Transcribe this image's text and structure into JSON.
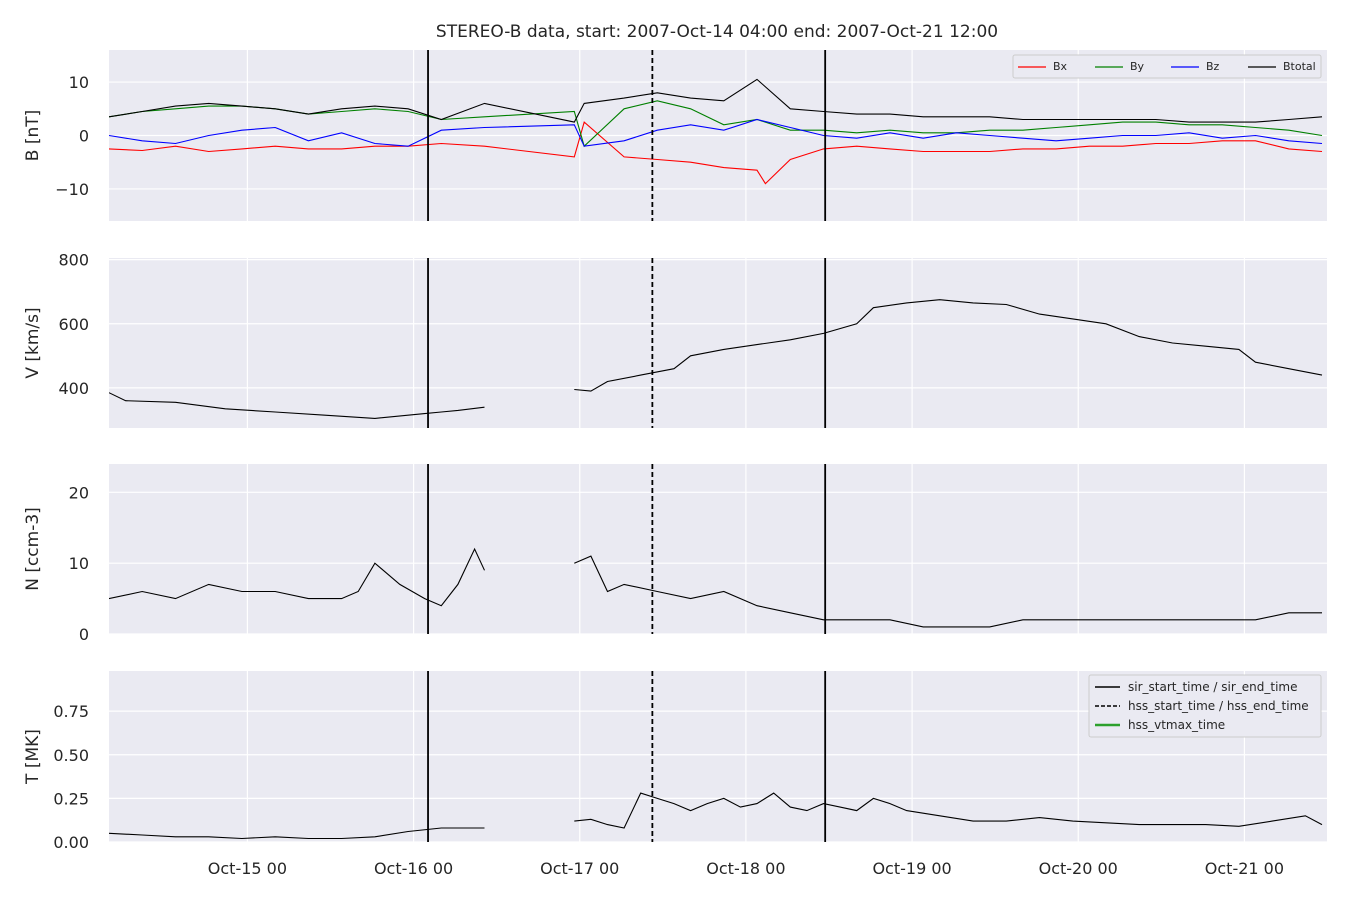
{
  "title": "STEREO-B data, start: 2007-Oct-14 04:00  end: 2007-Oct-21 12:00",
  "x_ticks": [
    "Oct-15 00",
    "Oct-16 00",
    "Oct-17 00",
    "Oct-18 00",
    "Oct-19 00",
    "Oct-20 00",
    "Oct-21 00"
  ],
  "legend_top": [
    "Bx",
    "By",
    "Bz",
    "Btotal"
  ],
  "legend_bottom": [
    "sir_start_time / sir_end_time",
    "hss_start_time / hss_end_time",
    "hss_vtmax_time"
  ],
  "colors": {
    "Bx": "#ff0000",
    "By": "#008000",
    "Bz": "#0000ff",
    "Btotal": "#000000",
    "hss_vtmax": "#2ca02c",
    "panel_bg": "#eaeaf2"
  },
  "chart_data": [
    {
      "type": "line",
      "ylabel": "B [nT]",
      "ylim": [
        -16,
        16
      ],
      "yticks": [
        -10,
        0,
        10
      ],
      "ytick_labels": [
        "−10",
        "0",
        "10"
      ],
      "series": [
        {
          "name": "Bx",
          "x": [
            0,
            0.2,
            0.4,
            0.6,
            0.8,
            1.0,
            1.2,
            1.4,
            1.6,
            1.8,
            2.0,
            2.26,
            2.8,
            2.86,
            3.1,
            3.3,
            3.5,
            3.7,
            3.9,
            3.95,
            4.1,
            4.3,
            4.5,
            4.7,
            4.9,
            5.1,
            5.3,
            5.5,
            5.7,
            5.9,
            6.1,
            6.3,
            6.5,
            6.7,
            6.9,
            7.1,
            7.3
          ],
          "y": [
            -2.5,
            -2.8,
            -2.0,
            -3.0,
            -2.5,
            -2.0,
            -2.5,
            -2.5,
            -2.0,
            -2.0,
            -1.5,
            -2.0,
            -4.0,
            2.5,
            -4.0,
            -4.5,
            -5.0,
            -6.0,
            -6.5,
            -9.0,
            -4.5,
            -2.5,
            -2.0,
            -2.5,
            -3.0,
            -3.0,
            -3.0,
            -2.5,
            -2.5,
            -2.0,
            -2.0,
            -1.5,
            -1.5,
            -1.0,
            -1.0,
            -2.5,
            -3.0
          ]
        },
        {
          "name": "By",
          "x": [
            0,
            0.2,
            0.4,
            0.6,
            0.8,
            1.0,
            1.2,
            1.4,
            1.6,
            1.8,
            2.0,
            2.26,
            2.8,
            2.86,
            3.1,
            3.3,
            3.5,
            3.7,
            3.9,
            4.1,
            4.3,
            4.5,
            4.7,
            4.9,
            5.1,
            5.3,
            5.5,
            5.7,
            5.9,
            6.1,
            6.3,
            6.5,
            6.7,
            6.9,
            7.1,
            7.3
          ],
          "y": [
            3.5,
            4.5,
            5.0,
            5.5,
            5.5,
            5.0,
            4.0,
            4.5,
            5.0,
            4.5,
            3.0,
            3.5,
            4.5,
            -2.0,
            5.0,
            6.5,
            5.0,
            2.0,
            3.0,
            1.0,
            1.0,
            0.5,
            1.0,
            0.5,
            0.5,
            1.0,
            1.0,
            1.5,
            2.0,
            2.5,
            2.5,
            2.0,
            2.0,
            1.5,
            1.0,
            0.0
          ]
        },
        {
          "name": "Bz",
          "x": [
            0,
            0.2,
            0.4,
            0.6,
            0.8,
            1.0,
            1.2,
            1.4,
            1.6,
            1.8,
            2.0,
            2.26,
            2.8,
            2.86,
            3.1,
            3.3,
            3.5,
            3.7,
            3.9,
            4.1,
            4.3,
            4.5,
            4.7,
            4.9,
            5.1,
            5.3,
            5.5,
            5.7,
            5.9,
            6.1,
            6.3,
            6.5,
            6.7,
            6.9,
            7.1,
            7.3
          ],
          "y": [
            0.0,
            -1.0,
            -1.5,
            0.0,
            1.0,
            1.5,
            -1.0,
            0.5,
            -1.5,
            -2.0,
            1.0,
            1.5,
            2.0,
            -2.0,
            -1.0,
            1.0,
            2.0,
            1.0,
            3.0,
            1.5,
            0.0,
            -0.5,
            0.5,
            -0.5,
            0.5,
            0.0,
            -0.5,
            -1.0,
            -0.5,
            0.0,
            0.0,
            0.5,
            -0.5,
            0.0,
            -1.0,
            -1.5
          ]
        },
        {
          "name": "Btotal",
          "x": [
            0,
            0.2,
            0.4,
            0.6,
            0.8,
            1.0,
            1.2,
            1.4,
            1.6,
            1.8,
            2.0,
            2.26,
            2.8,
            2.86,
            3.1,
            3.3,
            3.5,
            3.7,
            3.9,
            4.1,
            4.3,
            4.5,
            4.7,
            4.9,
            5.1,
            5.3,
            5.5,
            5.7,
            5.9,
            6.1,
            6.3,
            6.5,
            6.7,
            6.9,
            7.1,
            7.3
          ],
          "y": [
            3.5,
            4.5,
            5.5,
            6.0,
            5.5,
            5.0,
            4.0,
            5.0,
            5.5,
            5.0,
            3.0,
            6.0,
            2.5,
            6.0,
            7.0,
            8.0,
            7.0,
            6.5,
            10.5,
            5.0,
            4.5,
            4.0,
            4.0,
            3.5,
            3.5,
            3.5,
            3.0,
            3.0,
            3.0,
            3.0,
            3.0,
            2.5,
            2.5,
            2.5,
            3.0,
            3.5
          ]
        }
      ]
    },
    {
      "type": "line",
      "ylabel": "V [km/s]",
      "ylim": [
        275,
        805
      ],
      "yticks": [
        400,
        600,
        800
      ],
      "ytick_labels": [
        "400",
        "600",
        "800"
      ],
      "series": [
        {
          "name": "",
          "x": [
            0,
            0.1,
            0.4,
            0.7,
            1.0,
            1.3,
            1.6,
            1.9,
            2.0,
            2.1,
            2.26,
            null,
            2.8,
            2.9,
            3.0,
            3.2,
            3.4,
            3.5,
            3.7,
            3.9,
            4.1,
            4.3,
            4.5,
            4.6,
            4.8,
            5.0,
            5.2,
            5.4,
            5.6,
            5.8,
            6.0,
            6.2,
            6.4,
            6.6,
            6.8,
            6.9,
            7.1,
            7.3
          ],
          "y": [
            385,
            360,
            355,
            335,
            325,
            315,
            305,
            320,
            325,
            330,
            340,
            null,
            395,
            390,
            420,
            440,
            460,
            500,
            520,
            535,
            550,
            570,
            600,
            650,
            665,
            675,
            665,
            660,
            630,
            615,
            600,
            560,
            540,
            530,
            520,
            480,
            460,
            440
          ]
        }
      ]
    },
    {
      "type": "line",
      "ylabel": "N [ccm-3]",
      "ylim": [
        0,
        24
      ],
      "yticks": [
        0,
        10,
        20
      ],
      "ytick_labels": [
        "0",
        "10",
        "20"
      ],
      "series": [
        {
          "name": "",
          "x": [
            0,
            0.2,
            0.4,
            0.6,
            0.8,
            1.0,
            1.2,
            1.4,
            1.5,
            1.6,
            1.75,
            1.9,
            2.0,
            2.1,
            2.2,
            2.26,
            null,
            2.8,
            2.9,
            3.0,
            3.1,
            3.3,
            3.5,
            3.7,
            3.9,
            4.1,
            4.3,
            4.5,
            4.7,
            4.9,
            5.1,
            5.3,
            5.5,
            5.7,
            5.9,
            6.1,
            6.3,
            6.5,
            6.7,
            6.9,
            7.1,
            7.3
          ],
          "y": [
            5,
            6,
            5,
            7,
            6,
            6,
            5,
            5,
            6,
            10,
            7,
            5,
            4,
            7,
            12,
            9,
            null,
            10,
            11,
            6,
            7,
            6,
            5,
            6,
            4,
            3,
            2,
            2,
            2,
            1,
            1,
            1,
            2,
            2,
            2,
            2,
            2,
            2,
            2,
            2,
            3,
            3
          ]
        }
      ]
    },
    {
      "type": "line",
      "ylabel": "T [MK]",
      "ylim": [
        0,
        0.98
      ],
      "yticks": [
        0.0,
        0.25,
        0.5,
        0.75
      ],
      "ytick_labels": [
        "0.00",
        "0.25",
        "0.50",
        "0.75"
      ],
      "series": [
        {
          "name": "",
          "x": [
            0,
            0.2,
            0.4,
            0.6,
            0.8,
            1.0,
            1.2,
            1.4,
            1.6,
            1.8,
            2.0,
            2.26,
            null,
            2.8,
            2.9,
            3.0,
            3.1,
            3.2,
            3.3,
            3.4,
            3.5,
            3.6,
            3.7,
            3.8,
            3.9,
            4.0,
            4.1,
            4.2,
            4.3,
            4.4,
            4.5,
            4.6,
            4.7,
            4.8,
            5.0,
            5.2,
            5.4,
            5.6,
            5.8,
            6.0,
            6.2,
            6.4,
            6.6,
            6.8,
            7.0,
            7.2,
            7.3
          ],
          "y": [
            0.05,
            0.04,
            0.03,
            0.03,
            0.02,
            0.03,
            0.02,
            0.02,
            0.03,
            0.06,
            0.08,
            0.08,
            null,
            0.12,
            0.13,
            0.1,
            0.08,
            0.28,
            0.25,
            0.22,
            0.18,
            0.22,
            0.25,
            0.2,
            0.22,
            0.28,
            0.2,
            0.18,
            0.22,
            0.2,
            0.18,
            0.25,
            0.22,
            0.18,
            0.15,
            0.12,
            0.12,
            0.14,
            0.12,
            0.11,
            0.1,
            0.1,
            0.1,
            0.09,
            0.12,
            0.15,
            0.1
          ]
        }
      ]
    }
  ],
  "vlines": [
    {
      "x": 1.92,
      "style": "solid"
    },
    {
      "x": 3.27,
      "style": "dashed"
    },
    {
      "x": 4.31,
      "style": "solid"
    }
  ],
  "x_range": [
    0,
    7.33
  ],
  "x_tick_values": [
    0.833,
    1.833,
    2.833,
    3.833,
    4.833,
    5.833,
    6.833
  ],
  "x_unit": "days since 2007-Oct-14 04:00"
}
